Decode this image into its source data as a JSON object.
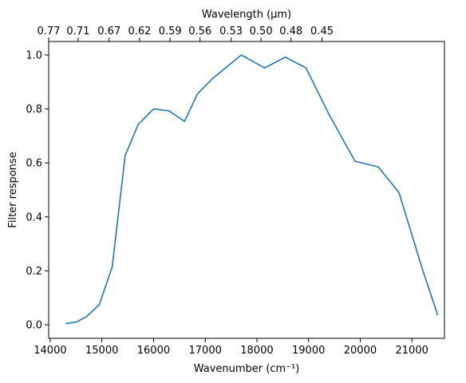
{
  "chart_data": {
    "type": "line",
    "xlabel": "Wavenumber (cm⁻¹)",
    "ylabel": "Filter response",
    "top_xlabel": "Wavelength (μm)",
    "xlim": [
      13970,
      21630
    ],
    "ylim": [
      -0.05,
      1.05
    ],
    "x_ticks": [
      14000,
      15000,
      16000,
      17000,
      18000,
      19000,
      20000,
      21000
    ],
    "x_tick_labels": [
      "14000",
      "15000",
      "16000",
      "17000",
      "18000",
      "19000",
      "20000",
      "21000"
    ],
    "y_ticks": [
      0.0,
      0.2,
      0.4,
      0.6,
      0.8,
      1.0
    ],
    "y_tick_labels": [
      "0.0",
      "0.2",
      "0.4",
      "0.6",
      "0.8",
      "1.0"
    ],
    "top_ticks": [
      {
        "wavenumber": 13970,
        "label": "0.77"
      },
      {
        "wavenumber": 14540,
        "label": "0.71"
      },
      {
        "wavenumber": 15140,
        "label": "0.67"
      },
      {
        "wavenumber": 15730,
        "label": "0.62"
      },
      {
        "wavenumber": 16320,
        "label": "0.59"
      },
      {
        "wavenumber": 16900,
        "label": "0.56"
      },
      {
        "wavenumber": 17500,
        "label": "0.53"
      },
      {
        "wavenumber": 18080,
        "label": "0.50"
      },
      {
        "wavenumber": 18660,
        "label": "0.48"
      },
      {
        "wavenumber": 19260,
        "label": "0.45"
      }
    ],
    "grid": false,
    "color": "#1f77b4",
    "series": [
      {
        "x": [
          14300,
          14500,
          14700,
          14950,
          15200,
          15450,
          15700,
          16000,
          16300,
          16600,
          16850,
          17150,
          17700,
          18150,
          18550,
          18950,
          19400,
          19900,
          20350,
          20750,
          21200,
          21500
        ],
        "y": [
          0.005,
          0.01,
          0.03,
          0.075,
          0.215,
          0.627,
          0.742,
          0.8,
          0.793,
          0.754,
          0.856,
          0.914,
          1.0,
          0.952,
          0.992,
          0.952,
          0.778,
          0.606,
          0.585,
          0.49,
          0.208,
          0.036
        ]
      }
    ]
  }
}
